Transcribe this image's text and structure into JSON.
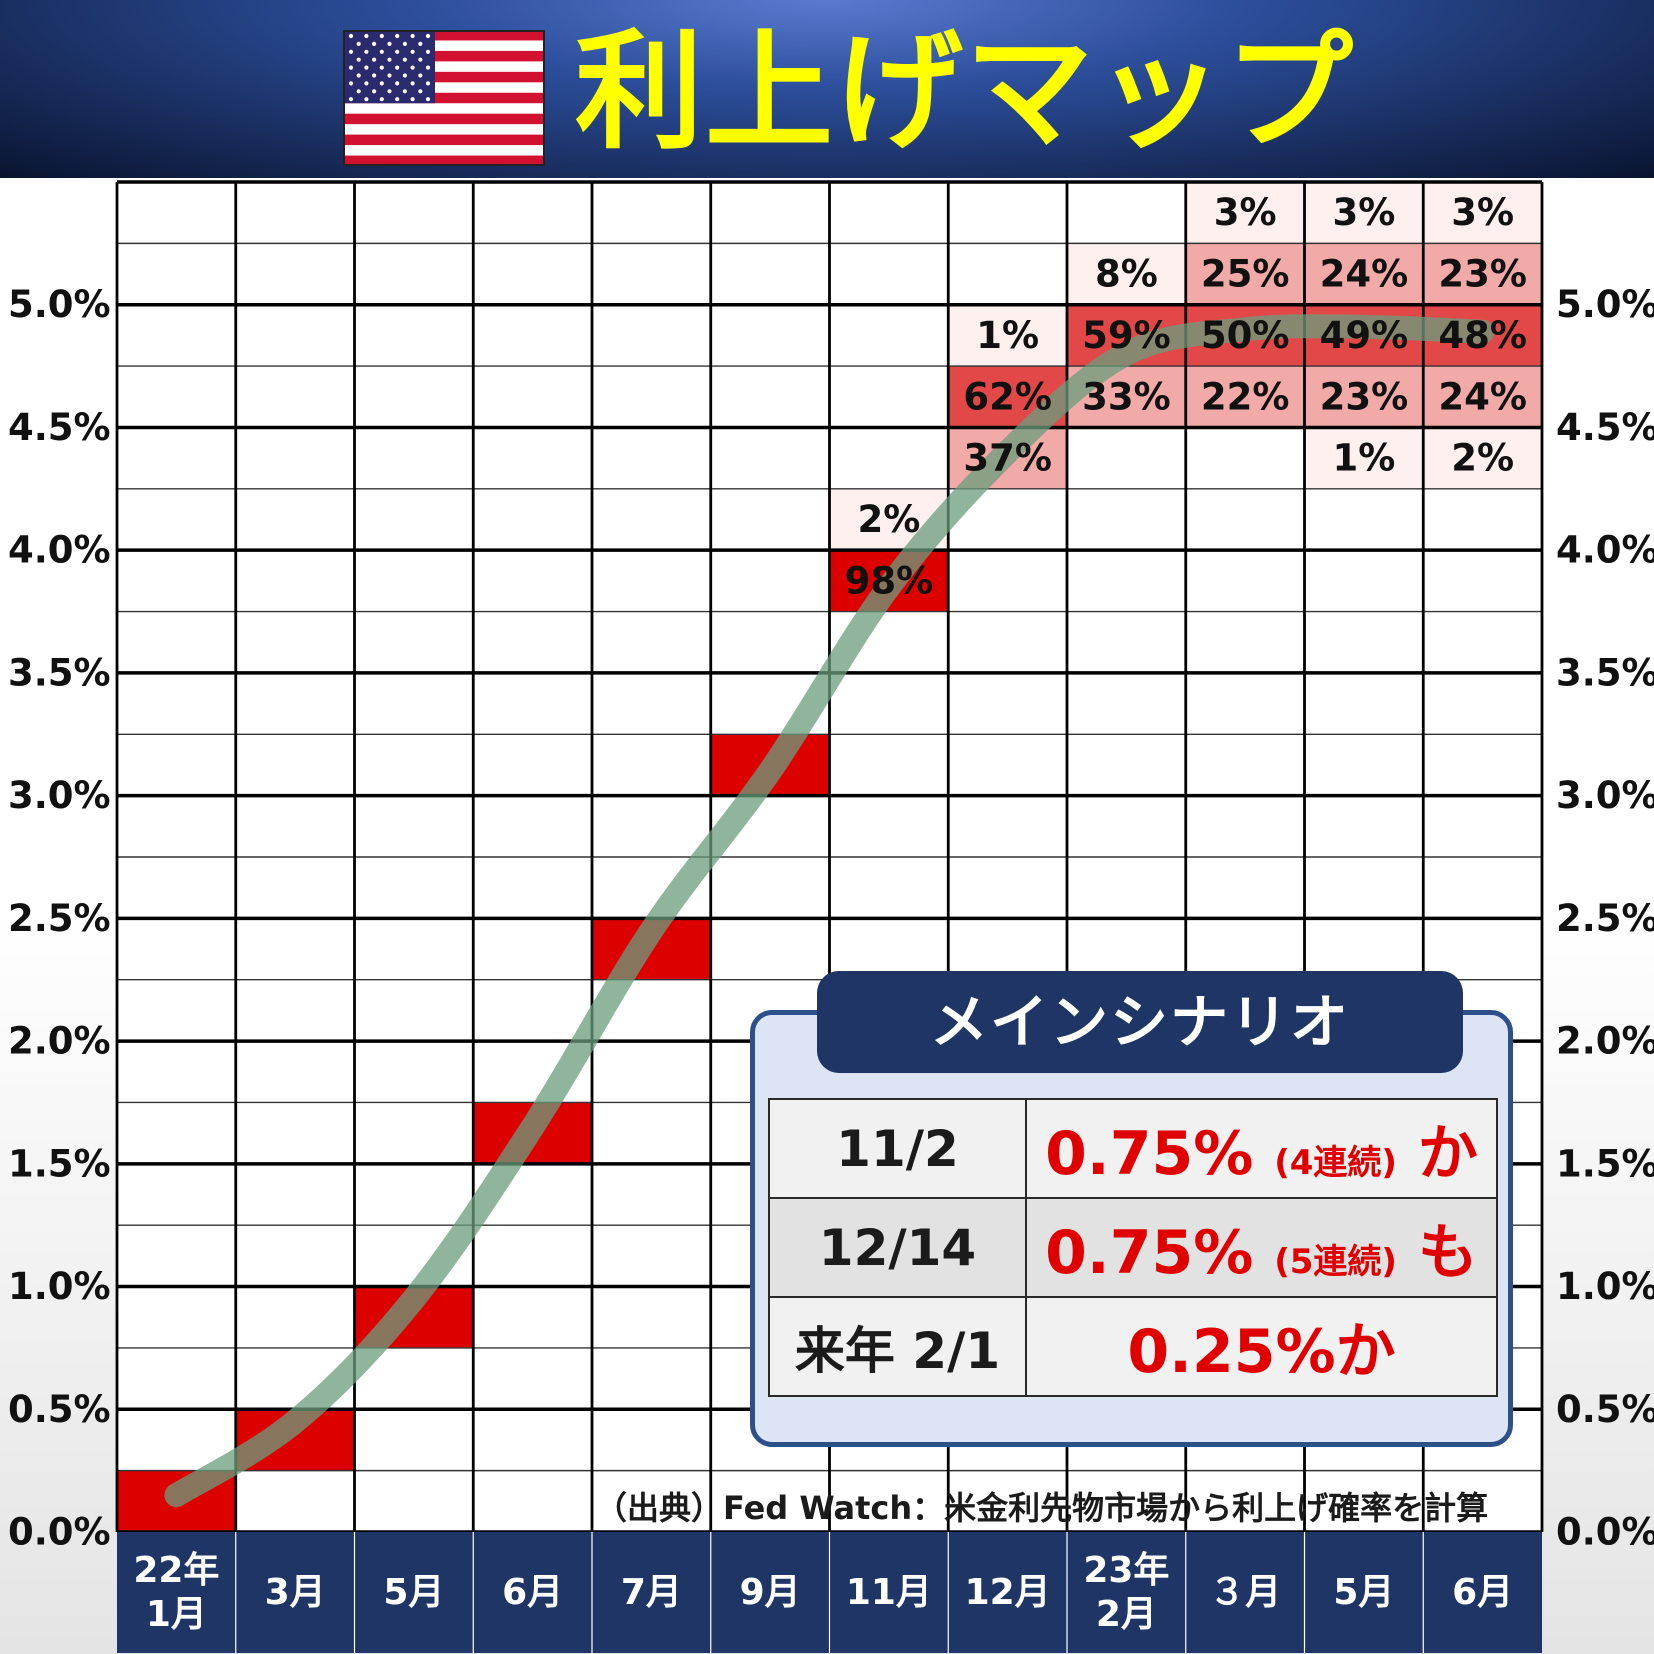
{
  "title": "利上げマップ",
  "chart_data": {
    "type": "heatmap",
    "x": [
      "22年\n1月",
      "3月",
      "5月",
      "6月",
      "7月",
      "9月",
      "11月",
      "12月",
      "23年\n2月",
      "３月",
      "5月",
      "6月"
    ],
    "y_ticks": [
      "0.0%",
      "0.5%",
      "1.0%",
      "1.5%",
      "2.0%",
      "2.5%",
      "3.0%",
      "3.5%",
      "4.0%",
      "4.5%",
      "5.0%"
    ],
    "ylim": [
      0,
      5.5
    ],
    "cells": [
      {
        "col": 0,
        "lower": 0.0,
        "prob": 100,
        "label": ""
      },
      {
        "col": 1,
        "lower": 0.25,
        "prob": 100,
        "label": ""
      },
      {
        "col": 2,
        "lower": 0.75,
        "prob": 100,
        "label": ""
      },
      {
        "col": 3,
        "lower": 1.5,
        "prob": 100,
        "label": ""
      },
      {
        "col": 4,
        "lower": 2.25,
        "prob": 100,
        "label": ""
      },
      {
        "col": 5,
        "lower": 3.0,
        "prob": 100,
        "label": ""
      },
      {
        "col": 6,
        "lower": 3.75,
        "prob": 98,
        "label": "98%"
      },
      {
        "col": 6,
        "lower": 4.0,
        "prob": 2,
        "label": "2%"
      },
      {
        "col": 7,
        "lower": 4.25,
        "prob": 37,
        "label": "37%"
      },
      {
        "col": 7,
        "lower": 4.5,
        "prob": 62,
        "label": "62%"
      },
      {
        "col": 7,
        "lower": 4.75,
        "prob": 1,
        "label": "1%"
      },
      {
        "col": 8,
        "lower": 4.5,
        "prob": 33,
        "label": "33%"
      },
      {
        "col": 8,
        "lower": 4.75,
        "prob": 59,
        "label": "59%"
      },
      {
        "col": 8,
        "lower": 5.0,
        "prob": 8,
        "label": "8%"
      },
      {
        "col": 9,
        "lower": 4.5,
        "prob": 22,
        "label": "22%"
      },
      {
        "col": 9,
        "lower": 4.75,
        "prob": 50,
        "label": "50%"
      },
      {
        "col": 9,
        "lower": 5.0,
        "prob": 25,
        "label": "25%"
      },
      {
        "col": 9,
        "lower": 5.25,
        "prob": 3,
        "label": "3%"
      },
      {
        "col": 10,
        "lower": 4.25,
        "prob": 1,
        "label": "1%"
      },
      {
        "col": 10,
        "lower": 4.5,
        "prob": 23,
        "label": "23%"
      },
      {
        "col": 10,
        "lower": 4.75,
        "prob": 49,
        "label": "49%"
      },
      {
        "col": 10,
        "lower": 5.0,
        "prob": 24,
        "label": "24%"
      },
      {
        "col": 10,
        "lower": 5.25,
        "prob": 3,
        "label": "3%"
      },
      {
        "col": 11,
        "lower": 4.25,
        "prob": 2,
        "label": "2%"
      },
      {
        "col": 11,
        "lower": 4.5,
        "prob": 24,
        "label": "24%"
      },
      {
        "col": 11,
        "lower": 4.75,
        "prob": 48,
        "label": "48%"
      },
      {
        "col": 11,
        "lower": 5.0,
        "prob": 23,
        "label": "23%"
      },
      {
        "col": 11,
        "lower": 5.25,
        "prob": 3,
        "label": "3%"
      }
    ],
    "trend_line": {
      "x": [
        0.5,
        1.5,
        2.5,
        3.5,
        4.5,
        5.5,
        6.5,
        7.5,
        8.5,
        9.5,
        10.5,
        11.5
      ],
      "y": [
        0.15,
        0.45,
        0.95,
        1.65,
        2.45,
        3.1,
        3.85,
        4.4,
        4.8,
        4.9,
        4.91,
        4.89
      ],
      "color": "#6a9c7c"
    },
    "colors": {
      "high": "#dd0000",
      "mid": "#e34848",
      "low": "#f2aaa8",
      "min": "#fdf0ee"
    }
  },
  "scenario": {
    "heading": "メインシナリオ",
    "rows": [
      {
        "date": "11/2",
        "value": "0.75%",
        "note": "(4連続)",
        "suffix": " か"
      },
      {
        "date": "12/14",
        "value": "0.75%",
        "note": "(5連続)",
        "suffix": " も"
      },
      {
        "date": "来年 2/1",
        "value": "0.25%か",
        "note": "",
        "suffix": ""
      }
    ]
  },
  "source": "（出典）Fed Watch：米金利先物市場から利上げ確率を計算"
}
